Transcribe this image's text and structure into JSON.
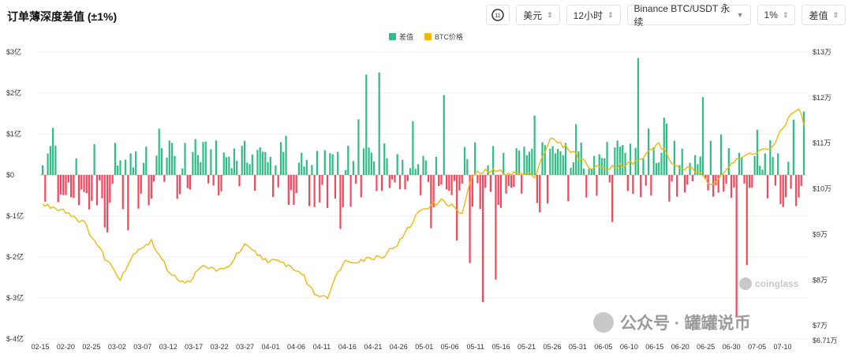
{
  "header": {
    "title": "订单薄深度差值 (±1%)",
    "icon_name": "clock-11-icon",
    "currency": "美元",
    "interval": "12小时",
    "exchange": "Binance BTC/USDT 永续",
    "depth": "1%",
    "metric": "差值"
  },
  "watermark": {
    "brand": "coinglass",
    "account": "公众号 · 罐罐说币"
  },
  "chart_data": {
    "type": "bar",
    "legend": [
      {
        "name": "差值",
        "color": "#2ebd85"
      },
      {
        "name": "BTC价格",
        "color": "#f0b90b"
      }
    ],
    "x_tick_labels": [
      "02-15",
      "02-20",
      "02-25",
      "03-02",
      "03-07",
      "03-12",
      "03-17",
      "03-22",
      "03-27",
      "04-01",
      "04-06",
      "04-11",
      "04-16",
      "04-21",
      "04-26",
      "05-01",
      "05-06",
      "05-11",
      "05-16",
      "05-21",
      "05-26",
      "05-31",
      "06-05",
      "06-10",
      "06-15",
      "06-20",
      "06-25",
      "06-30",
      "07-05",
      "07-10"
    ],
    "left_axis": {
      "labels": [
        "$3亿",
        "$2亿",
        "$1亿",
        "$0",
        "$-1亿",
        "$-2亿",
        "$-3亿",
        "$-4亿"
      ],
      "ylim": [
        -4,
        3
      ],
      "unit": "亿美元"
    },
    "right_axis": {
      "labels": [
        "$13万",
        "$12万",
        "$11万",
        "$10万",
        "$9万",
        "$8万",
        "$7万",
        "$6.71万"
      ],
      "ylim": [
        6.71,
        13
      ],
      "unit": "万美元"
    },
    "periods": 295,
    "series": [
      {
        "name": "差值",
        "axis": "left",
        "key_values": [
          {
            "period": 4,
            "value": 1.15
          },
          {
            "period": 25,
            "value": -1.4
          },
          {
            "period": 33,
            "value": -1.35
          },
          {
            "period": 125,
            "value": 2.45
          },
          {
            "period": 130,
            "value": 2.5
          },
          {
            "period": 138,
            "value": -0.35
          },
          {
            "period": 150,
            "value": -1.3
          },
          {
            "period": 155,
            "value": 1.95
          },
          {
            "period": 160,
            "value": -1.6
          },
          {
            "period": 165,
            "value": -2.15
          },
          {
            "period": 170,
            "value": -3.1
          },
          {
            "period": 175,
            "value": -2.55
          },
          {
            "period": 190,
            "value": 1.45
          },
          {
            "period": 210,
            "value": -0.55
          },
          {
            "period": 230,
            "value": 2.85
          },
          {
            "period": 240,
            "value": 1.4
          },
          {
            "period": 255,
            "value": 1.9
          },
          {
            "period": 268,
            "value": -3.45
          },
          {
            "period": 272,
            "value": -2.2
          },
          {
            "period": 290,
            "value": 1.35
          },
          {
            "period": 294,
            "value": 1.55
          }
        ]
      },
      {
        "name": "BTC价格",
        "axis": "right",
        "key_values": [
          {
            "period": 0,
            "value": 9.65
          },
          {
            "period": 8,
            "value": 9.55
          },
          {
            "period": 16,
            "value": 9.25
          },
          {
            "period": 24,
            "value": 8.5
          },
          {
            "period": 30,
            "value": 8.05
          },
          {
            "period": 36,
            "value": 8.65
          },
          {
            "period": 42,
            "value": 8.85
          },
          {
            "period": 48,
            "value": 8.25
          },
          {
            "period": 55,
            "value": 7.9
          },
          {
            "period": 62,
            "value": 8.3
          },
          {
            "period": 70,
            "value": 8.2
          },
          {
            "period": 78,
            "value": 8.75
          },
          {
            "period": 86,
            "value": 8.45
          },
          {
            "period": 94,
            "value": 8.35
          },
          {
            "period": 100,
            "value": 8.15
          },
          {
            "period": 105,
            "value": 7.7
          },
          {
            "period": 110,
            "value": 7.65
          },
          {
            "period": 116,
            "value": 8.4
          },
          {
            "period": 124,
            "value": 8.45
          },
          {
            "period": 132,
            "value": 8.55
          },
          {
            "period": 138,
            "value": 8.85
          },
          {
            "period": 146,
            "value": 9.55
          },
          {
            "period": 155,
            "value": 9.75
          },
          {
            "period": 162,
            "value": 9.45
          },
          {
            "period": 166,
            "value": 10.3
          },
          {
            "period": 172,
            "value": 10.4
          },
          {
            "period": 180,
            "value": 10.35
          },
          {
            "period": 190,
            "value": 10.3
          },
          {
            "period": 196,
            "value": 11.1
          },
          {
            "period": 204,
            "value": 10.85
          },
          {
            "period": 212,
            "value": 10.45
          },
          {
            "period": 222,
            "value": 10.5
          },
          {
            "period": 230,
            "value": 10.6
          },
          {
            "period": 238,
            "value": 11.0
          },
          {
            "period": 244,
            "value": 10.5
          },
          {
            "period": 252,
            "value": 10.4
          },
          {
            "period": 258,
            "value": 10.1
          },
          {
            "period": 266,
            "value": 10.55
          },
          {
            "period": 274,
            "value": 10.8
          },
          {
            "period": 282,
            "value": 10.9
          },
          {
            "period": 288,
            "value": 11.55
          },
          {
            "period": 292,
            "value": 11.8
          },
          {
            "period": 294,
            "value": 11.4
          }
        ]
      }
    ]
  }
}
